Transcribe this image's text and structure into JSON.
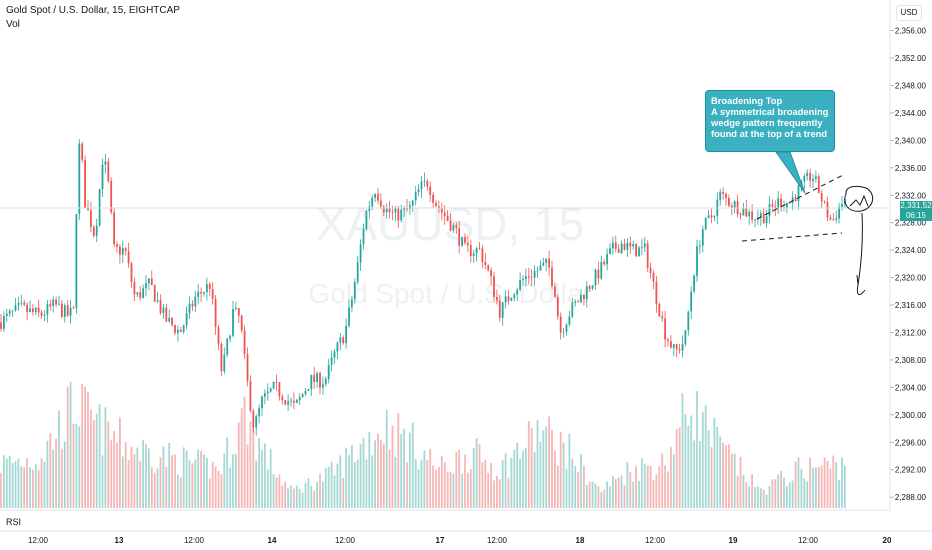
{
  "header": {
    "title": "Gold Spot / U.S. Dollar, 15, EIGHTCAP",
    "volume_label": "Vol",
    "currency": "USD"
  },
  "watermark": {
    "symbol": "XAUUSD, 15",
    "name": "Gold Spot / U.S. Dollar"
  },
  "annotation": {
    "title": "Broadening Top",
    "body": "A symmetrical broadening wedge pattern frequently found at the top of a trend"
  },
  "last_price": {
    "value": "2,331.52",
    "timer": "06:15"
  },
  "indicator_label": "RSI",
  "colors": {
    "up": "#26a69a",
    "down": "#ef5350",
    "up_volume": "#a6d8d3",
    "down_volume": "#f5b7b5",
    "callout": "#3bb0c0"
  },
  "chart_data": {
    "type": "candlestick",
    "price_axis": {
      "ticks": [
        "2,356.00",
        "2,352.00",
        "2,348.00",
        "2,344.00",
        "2,340.00",
        "2,336.00",
        "2,332.00",
        "2,328.00",
        "2,324.00",
        "2,320.00",
        "2,316.00",
        "2,312.00",
        "2,308.00",
        "2,304.00",
        "2,300.00",
        "2,296.00",
        "2,292.00",
        "2,288.00"
      ],
      "range": [
        2287,
        2359
      ]
    },
    "time_axis": {
      "ticks": [
        "12:00",
        "13",
        "12:00",
        "14",
        "12:00",
        "17",
        "12:00",
        "18",
        "12:00",
        "19",
        "12:00",
        "20"
      ]
    },
    "price_path": [
      [
        0,
        2313.5
      ],
      [
        20,
        2315.5
      ],
      [
        40,
        2314.5
      ],
      [
        55,
        2316
      ],
      [
        68,
        2314.5
      ],
      [
        74,
        2315
      ],
      [
        77,
        2334
      ],
      [
        80,
        2340.5
      ],
      [
        85,
        2331
      ],
      [
        95,
        2326
      ],
      [
        103,
        2338
      ],
      [
        108,
        2334
      ],
      [
        114,
        2324
      ],
      [
        125,
        2324
      ],
      [
        135,
        2317
      ],
      [
        150,
        2319
      ],
      [
        165,
        2314
      ],
      [
        180,
        2312
      ],
      [
        195,
        2317
      ],
      [
        210,
        2319
      ],
      [
        218,
        2310
      ],
      [
        222,
        2306
      ],
      [
        233,
        2315
      ],
      [
        240,
        2314
      ],
      [
        246,
        2306
      ],
      [
        254,
        2298
      ],
      [
        262,
        2302
      ],
      [
        275,
        2304
      ],
      [
        295,
        2301
      ],
      [
        310,
        2305
      ],
      [
        325,
        2305
      ],
      [
        335,
        2309
      ],
      [
        345,
        2312
      ],
      [
        352,
        2317
      ],
      [
        358,
        2322
      ],
      [
        365,
        2329
      ],
      [
        375,
        2333
      ],
      [
        385,
        2330
      ],
      [
        395,
        2329
      ],
      [
        410,
        2330
      ],
      [
        420,
        2333
      ],
      [
        428,
        2334
      ],
      [
        435,
        2331
      ],
      [
        445,
        2329
      ],
      [
        455,
        2327
      ],
      [
        465,
        2324
      ],
      [
        480,
        2324
      ],
      [
        490,
        2320
      ],
      [
        500,
        2315
      ],
      [
        512,
        2318
      ],
      [
        525,
        2320
      ],
      [
        537,
        2321
      ],
      [
        548,
        2322
      ],
      [
        555,
        2318
      ],
      [
        560,
        2312
      ],
      [
        570,
        2315
      ],
      [
        585,
        2318
      ],
      [
        600,
        2321
      ],
      [
        612,
        2324
      ],
      [
        622,
        2325
      ],
      [
        632,
        2324
      ],
      [
        645,
        2324
      ],
      [
        655,
        2318
      ],
      [
        665,
        2312
      ],
      [
        675,
        2309
      ],
      [
        685,
        2311
      ],
      [
        690,
        2317
      ],
      [
        696,
        2323
      ],
      [
        702,
        2327
      ],
      [
        712,
        2329
      ],
      [
        720,
        2332
      ],
      [
        730,
        2331
      ],
      [
        742,
        2330
      ],
      [
        752,
        2329
      ],
      [
        765,
        2329
      ],
      [
        778,
        2331
      ],
      [
        790,
        2331
      ],
      [
        800,
        2333
      ],
      [
        812,
        2335
      ],
      [
        818,
        2333
      ],
      [
        825,
        2330
      ],
      [
        832,
        2328
      ],
      [
        838,
        2330
      ],
      [
        845,
        2331.5
      ]
    ],
    "volume_profile": [
      [
        0,
        0.4
      ],
      [
        40,
        0.45
      ],
      [
        75,
        0.95
      ],
      [
        95,
        0.75
      ],
      [
        130,
        0.55
      ],
      [
        170,
        0.45
      ],
      [
        220,
        0.35
      ],
      [
        245,
        0.85
      ],
      [
        260,
        0.55
      ],
      [
        290,
        0.15
      ],
      [
        330,
        0.3
      ],
      [
        360,
        0.55
      ],
      [
        385,
        0.75
      ],
      [
        410,
        0.6
      ],
      [
        440,
        0.35
      ],
      [
        470,
        0.5
      ],
      [
        500,
        0.35
      ],
      [
        540,
        0.7
      ],
      [
        570,
        0.5
      ],
      [
        600,
        0.15
      ],
      [
        630,
        0.35
      ],
      [
        665,
        0.4
      ],
      [
        690,
        0.95
      ],
      [
        720,
        0.55
      ],
      [
        760,
        0.15
      ],
      [
        800,
        0.35
      ],
      [
        845,
        0.4
      ]
    ]
  }
}
